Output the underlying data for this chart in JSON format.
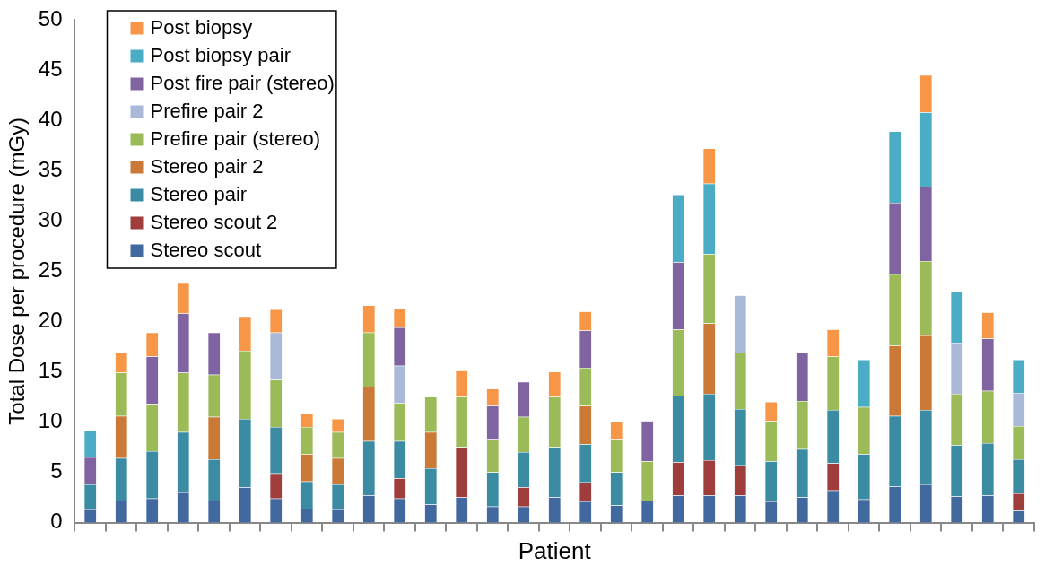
{
  "chart_data": {
    "type": "bar",
    "stacked": true,
    "legend": "top left",
    "xlabel": "Patient",
    "ylabel": "Total Dose per procedure (mGy)",
    "ylim": [
      0,
      50
    ],
    "yticks": [
      0,
      5,
      10,
      15,
      20,
      25,
      30,
      35,
      40,
      45,
      50
    ],
    "categories": [
      null,
      null,
      null,
      null,
      null,
      null,
      null,
      null,
      null,
      null,
      null,
      null,
      null,
      null,
      null,
      null,
      null,
      null,
      null,
      null,
      null,
      null,
      null,
      null,
      null,
      null,
      null,
      null,
      null,
      null,
      null
    ],
    "series": [
      {
        "name": "Stereo scout",
        "color": "#4169a0",
        "values": [
          1.3,
          2.2,
          2.4,
          3.0,
          2.2,
          3.5,
          2.4,
          1.4,
          1.3,
          2.7,
          2.4,
          1.8,
          2.5,
          1.6,
          1.6,
          2.5,
          2.1,
          1.7,
          2.2,
          2.7,
          2.7,
          2.7,
          2.1,
          2.5,
          3.2,
          2.3,
          3.6,
          3.8,
          2.6,
          2.7,
          1.2
        ]
      },
      {
        "name": "Stereo scout 2",
        "color": "#9e3d3b",
        "values": [
          null,
          null,
          null,
          null,
          null,
          null,
          2.5,
          null,
          null,
          null,
          2.0,
          null,
          5.0,
          null,
          1.9,
          null,
          1.9,
          null,
          null,
          3.3,
          3.5,
          3.0,
          null,
          null,
          2.7,
          null,
          null,
          null,
          null,
          null,
          1.7
        ]
      },
      {
        "name": "Stereo pair",
        "color": "#3b8ba3",
        "values": [
          2.5,
          4.2,
          4.7,
          6.0,
          4.1,
          6.8,
          4.6,
          2.7,
          2.5,
          5.4,
          3.7,
          3.6,
          null,
          3.4,
          3.5,
          5.0,
          3.8,
          3.3,
          null,
          6.6,
          6.6,
          5.6,
          4.0,
          4.8,
          5.3,
          4.5,
          7.0,
          7.4,
          5.1,
          5.2,
          3.4
        ]
      },
      {
        "name": "Stereo pair 2",
        "color": "#cb7936",
        "values": [
          null,
          4.2,
          null,
          null,
          4.2,
          null,
          null,
          2.7,
          2.6,
          5.4,
          null,
          3.6,
          null,
          null,
          null,
          null,
          3.8,
          null,
          null,
          null,
          7.0,
          null,
          null,
          null,
          null,
          null,
          7.0,
          7.4,
          null,
          null,
          null
        ]
      },
      {
        "name": "Prefire pair (stereo)",
        "color": "#9bbb59",
        "values": [
          null,
          4.3,
          4.7,
          5.9,
          4.2,
          6.8,
          4.7,
          2.7,
          2.6,
          5.4,
          3.8,
          3.5,
          5.0,
          3.3,
          3.5,
          5.0,
          3.8,
          3.3,
          3.9,
          6.6,
          6.9,
          5.6,
          4.0,
          4.8,
          5.3,
          4.7,
          7.1,
          7.4,
          5.1,
          5.2,
          3.3
        ]
      },
      {
        "name": "Prefire pair 2",
        "color": "#aab9d8",
        "values": [
          null,
          null,
          null,
          null,
          null,
          null,
          4.7,
          null,
          null,
          null,
          3.7,
          null,
          null,
          null,
          null,
          null,
          null,
          null,
          null,
          null,
          null,
          5.7,
          null,
          null,
          null,
          null,
          null,
          null,
          5.1,
          null,
          3.3
        ]
      },
      {
        "name": "Post fire pair (stereo)",
        "color": "#8064a2",
        "values": [
          2.7,
          null,
          4.7,
          5.9,
          4.2,
          null,
          null,
          null,
          null,
          null,
          3.8,
          null,
          null,
          3.3,
          3.5,
          null,
          3.7,
          null,
          4.0,
          6.7,
          null,
          null,
          null,
          4.8,
          null,
          null,
          7.1,
          7.4,
          null,
          5.2,
          null
        ]
      },
      {
        "name": "Post biopsy pair",
        "color": "#4bacc6",
        "values": [
          2.7,
          null,
          null,
          null,
          null,
          null,
          null,
          null,
          null,
          null,
          null,
          null,
          null,
          null,
          null,
          null,
          null,
          null,
          null,
          6.7,
          7.0,
          null,
          null,
          null,
          null,
          4.7,
          7.1,
          7.4,
          5.1,
          null,
          3.3
        ]
      },
      {
        "name": "Post biopsy",
        "color": "#f79646",
        "values": [
          null,
          2.0,
          2.4,
          3.0,
          null,
          3.4,
          2.3,
          1.4,
          1.3,
          2.7,
          1.9,
          null,
          2.6,
          1.7,
          null,
          2.5,
          1.9,
          1.7,
          null,
          null,
          3.5,
          null,
          1.9,
          null,
          2.7,
          null,
          null,
          3.7,
          null,
          2.6,
          null
        ]
      }
    ]
  }
}
